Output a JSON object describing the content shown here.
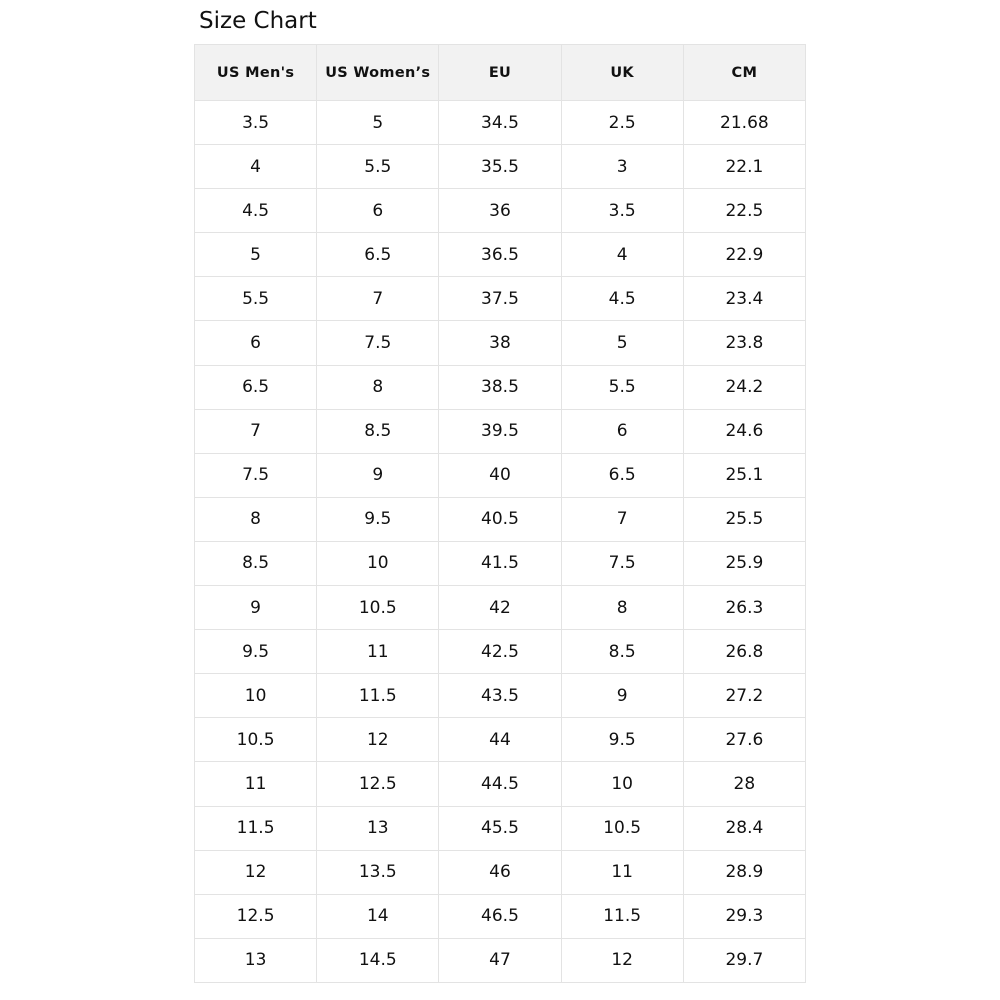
{
  "title": "Size Chart",
  "columns": [
    "US Men's",
    "US Women’s",
    "EU",
    "UK",
    "CM"
  ],
  "rows": [
    [
      "3.5",
      "5",
      "34.5",
      "2.5",
      "21.68"
    ],
    [
      "4",
      "5.5",
      "35.5",
      "3",
      "22.1"
    ],
    [
      "4.5",
      "6",
      "36",
      "3.5",
      "22.5"
    ],
    [
      "5",
      "6.5",
      "36.5",
      "4",
      "22.9"
    ],
    [
      "5.5",
      "7",
      "37.5",
      "4.5",
      "23.4"
    ],
    [
      "6",
      "7.5",
      "38",
      "5",
      "23.8"
    ],
    [
      "6.5",
      "8",
      "38.5",
      "5.5",
      "24.2"
    ],
    [
      "7",
      "8.5",
      "39.5",
      "6",
      "24.6"
    ],
    [
      "7.5",
      "9",
      "40",
      "6.5",
      "25.1"
    ],
    [
      "8",
      "9.5",
      "40.5",
      "7",
      "25.5"
    ],
    [
      "8.5",
      "10",
      "41.5",
      "7.5",
      "25.9"
    ],
    [
      "9",
      "10.5",
      "42",
      "8",
      "26.3"
    ],
    [
      "9.5",
      "11",
      "42.5",
      "8.5",
      "26.8"
    ],
    [
      "10",
      "11.5",
      "43.5",
      "9",
      "27.2"
    ],
    [
      "10.5",
      "12",
      "44",
      "9.5",
      "27.6"
    ],
    [
      "11",
      "12.5",
      "44.5",
      "10",
      "28"
    ],
    [
      "11.5",
      "13",
      "45.5",
      "10.5",
      "28.4"
    ],
    [
      "12",
      "13.5",
      "46",
      "11",
      "28.9"
    ],
    [
      "12.5",
      "14",
      "46.5",
      "11.5",
      "29.3"
    ],
    [
      "13",
      "14.5",
      "47",
      "12",
      "29.7"
    ]
  ]
}
